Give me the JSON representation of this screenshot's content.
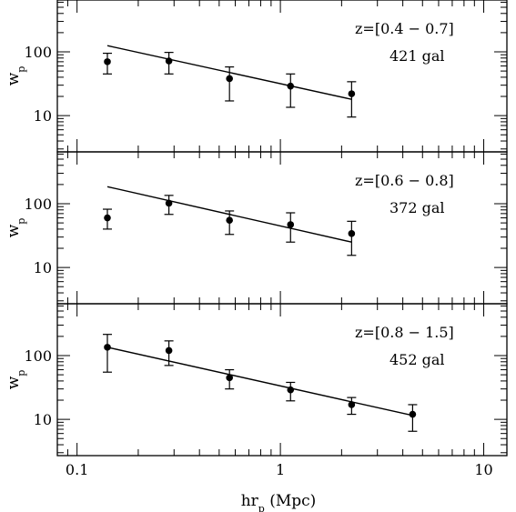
{
  "chart_data": {
    "type": "scatter",
    "xscale": "log",
    "yscale": "log",
    "xlim": [
      0.08,
      13
    ],
    "ylim": [
      2.7,
      650
    ],
    "xlabel": "hr",
    "xlabel_sub": "p",
    "xlabel_units": "(Mpc)",
    "ylabel": "w",
    "ylabel_sub": "p",
    "x_ticks": [
      {
        "value": 0.1,
        "label": "0.1"
      },
      {
        "value": 1,
        "label": "1"
      },
      {
        "value": 10,
        "label": "10"
      }
    ],
    "y_ticks": [
      {
        "value": 10,
        "label": "10"
      },
      {
        "value": 100,
        "label": "100"
      }
    ],
    "panels": [
      {
        "label": "z=[0.4 − 0.7]",
        "count": "421 gal",
        "points": [
          {
            "x": 0.141,
            "y": 70,
            "ylo": 45,
            "yhi": 95
          },
          {
            "x": 0.283,
            "y": 72,
            "ylo": 45,
            "yhi": 98
          },
          {
            "x": 0.562,
            "y": 38,
            "ylo": 17,
            "yhi": 58
          },
          {
            "x": 1.122,
            "y": 29,
            "ylo": 13.5,
            "yhi": 45
          },
          {
            "x": 2.24,
            "y": 22,
            "ylo": 9.5,
            "yhi": 34
          }
        ],
        "fit": {
          "x": [
            0.141,
            2.24
          ],
          "y": [
            125,
            18
          ]
        }
      },
      {
        "label": "z=[0.6 − 0.8]",
        "count": "372 gal",
        "points": [
          {
            "x": 0.141,
            "y": 60,
            "ylo": 40,
            "yhi": 82
          },
          {
            "x": 0.283,
            "y": 102,
            "ylo": 68,
            "yhi": 135
          },
          {
            "x": 0.562,
            "y": 55,
            "ylo": 33,
            "yhi": 77
          },
          {
            "x": 1.122,
            "y": 47,
            "ylo": 25,
            "yhi": 72
          },
          {
            "x": 2.24,
            "y": 34,
            "ylo": 15.5,
            "yhi": 53
          }
        ],
        "fit": {
          "x": [
            0.141,
            2.24
          ],
          "y": [
            185,
            25
          ]
        }
      },
      {
        "label": "z=[0.8 − 1.5]",
        "count": "452 gal",
        "points": [
          {
            "x": 0.141,
            "y": 135,
            "ylo": 55,
            "yhi": 215
          },
          {
            "x": 0.283,
            "y": 120,
            "ylo": 70,
            "yhi": 170
          },
          {
            "x": 0.562,
            "y": 45,
            "ylo": 30,
            "yhi": 60
          },
          {
            "x": 1.122,
            "y": 29,
            "ylo": 19.5,
            "yhi": 38
          },
          {
            "x": 2.24,
            "y": 17,
            "ylo": 12,
            "yhi": 22
          },
          {
            "x": 4.47,
            "y": 12,
            "ylo": 6.5,
            "yhi": 17
          }
        ],
        "fit": {
          "x": [
            0.141,
            4.47
          ],
          "y": [
            135,
            11.5
          ]
        }
      }
    ]
  }
}
